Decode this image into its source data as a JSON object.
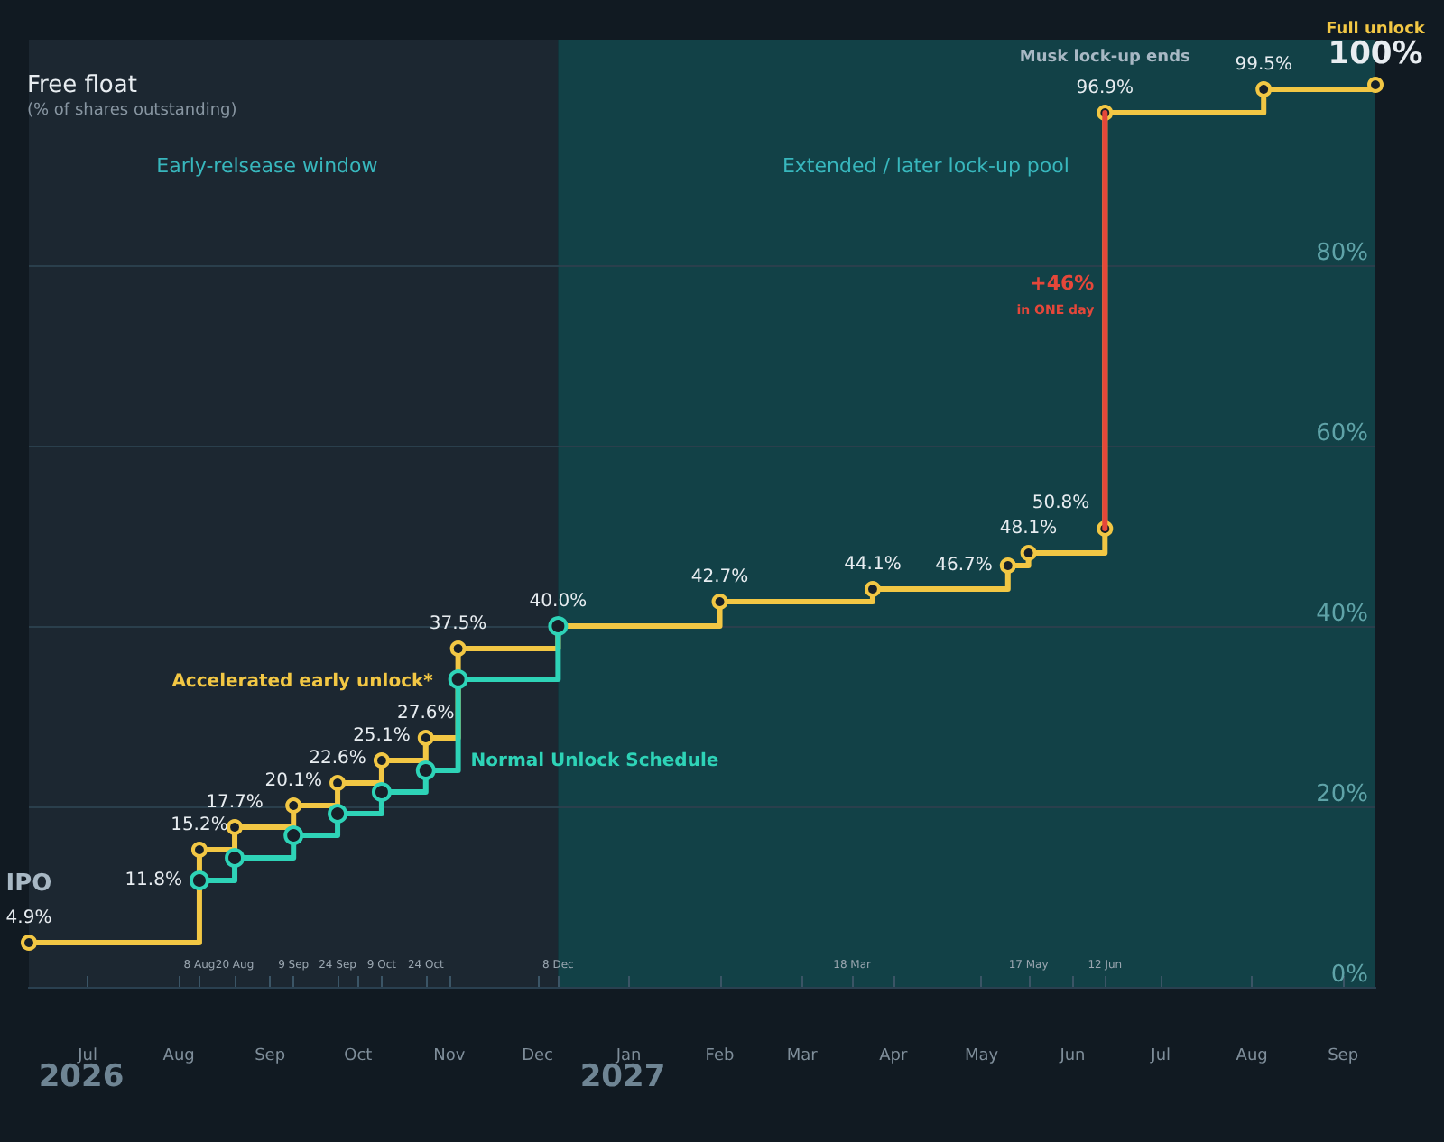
{
  "chart_data": {
    "type": "step",
    "title": "Free float",
    "subtitle": "(% of shares outstanding)",
    "xlim": [
      "2026-06-11",
      "2027-09-12"
    ],
    "xticks": [
      {
        "value": "2026-07-01",
        "label": "Jul"
      },
      {
        "value": "2026-08-01",
        "label": "Aug"
      },
      {
        "value": "2026-09-01",
        "label": "Sep"
      },
      {
        "value": "2026-10-01",
        "label": "Oct"
      },
      {
        "value": "2026-11-01",
        "label": "Nov"
      },
      {
        "value": "2026-12-01",
        "label": "Dec"
      },
      {
        "value": "2027-01-01",
        "label": "Jan"
      },
      {
        "value": "2027-02-01",
        "label": "Feb"
      },
      {
        "value": "2027-03-01",
        "label": "Mar"
      },
      {
        "value": "2027-04-01",
        "label": "Apr"
      },
      {
        "value": "2027-05-01",
        "label": "May"
      },
      {
        "value": "2027-06-01",
        "label": "Jun"
      },
      {
        "value": "2027-07-01",
        "label": "Jul"
      },
      {
        "value": "2027-08-01",
        "label": "Aug"
      },
      {
        "value": "2027-09-01",
        "label": "Sep"
      }
    ],
    "x2lim": [
      "2026-06-11",
      "2027-09-12"
    ],
    "x2ticks": [
      {
        "value": "2026-08-08",
        "label": "8 Aug"
      },
      {
        "value": "2026-08-20",
        "label": "20 Aug"
      },
      {
        "value": "2026-09-09",
        "label": "9 Sep"
      },
      {
        "value": "2026-09-24",
        "label": "24 Sep"
      },
      {
        "value": "2026-10-09",
        "label": "9 Oct"
      },
      {
        "value": "2026-10-24",
        "label": "24 Oct"
      },
      {
        "value": "2026-12-08",
        "label": "8 Dec"
      },
      {
        "value": "2027-03-18",
        "label": "18 Mar"
      },
      {
        "value": "2027-05-17",
        "label": "17 May"
      },
      {
        "value": "2027-06-12",
        "label": "12 Jun"
      }
    ],
    "ylim": [
      0,
      105
    ],
    "yticks": [
      {
        "value": 0,
        "label": "0%"
      },
      {
        "value": 20,
        "label": "20%"
      },
      {
        "value": 40,
        "label": "40%"
      },
      {
        "value": 60,
        "label": "60%"
      },
      {
        "value": 80,
        "label": "80%"
      }
    ],
    "grid": "y",
    "legend": false,
    "marker": "circle",
    "line_style": "solid",
    "series": [
      {
        "name": "Accelerated early unlock*",
        "color": "#f2c744",
        "x": [
          "2026-06-11",
          "2026-08-08",
          "2026-08-20",
          "2026-09-09",
          "2026-09-24",
          "2026-10-09",
          "2026-10-24",
          "2026-11-04",
          "2026-12-08",
          "2027-02-01",
          "2027-03-25",
          "2027-05-10",
          "2027-05-17",
          "2027-06-12",
          "2027-06-12",
          "2027-08-05",
          "2027-09-12"
        ],
        "values": [
          4.9,
          15.2,
          17.7,
          20.1,
          22.6,
          25.1,
          27.6,
          37.5,
          40.0,
          42.7,
          44.1,
          46.7,
          48.1,
          50.8,
          96.9,
          99.5,
          100
        ],
        "value_labels": [
          "4.9%",
          "15.2%",
          "17.7%",
          "20.1%",
          "22.6%",
          "25.1%",
          "27.6%",
          "37.5%",
          "40.0%",
          "42.7%",
          "44.1%",
          "46.7%",
          "48.1%",
          "50.8%",
          "96.9%",
          "99.5%",
          "100%"
        ]
      },
      {
        "name": "Normal Unlock Schedule",
        "color": "#2ed3b7",
        "x": [
          "2026-08-08",
          "2026-08-20",
          "2026-09-09",
          "2026-09-24",
          "2026-10-09",
          "2026-10-24",
          "2026-11-04",
          "2026-12-08"
        ],
        "values": [
          11.8,
          14.3,
          16.8,
          19.2,
          21.6,
          24.0,
          34.1,
          40.0
        ],
        "value_labels": [
          "11.8%",
          null,
          null,
          null,
          null,
          null,
          null,
          null
        ]
      },
      {
        "type": "line",
        "color": "#e5473a",
        "marker": "none",
        "x": [
          "2027-06-12",
          "2027-06-12"
        ],
        "values": [
          50.8,
          96.9
        ]
      }
    ],
    "bands": [
      {
        "axis": "x",
        "from": "2026-06-11",
        "to": "2026-12-08",
        "label": "Early-relsease window",
        "color": "#1c2731"
      },
      {
        "axis": "x",
        "from": "2026-12-08",
        "to": "2027-09-12",
        "label": "Extended / later lock-up pool",
        "color": "#124147"
      }
    ],
    "annotations": [
      {
        "text": "IPO",
        "x": "2026-06-11",
        "y": 4.9
      },
      {
        "text": "Musk lock-up ends",
        "x": "2027-06-12",
        "y": 96.9
      },
      {
        "text": "Full unlock",
        "x": "2027-09-12",
        "y": 100
      },
      {
        "text": "+46%",
        "x": "2027-06-12",
        "y": 78
      },
      {
        "text": "in ONE day",
        "x": "2027-06-12",
        "y": 75
      },
      "2026",
      "2027"
    ]
  }
}
